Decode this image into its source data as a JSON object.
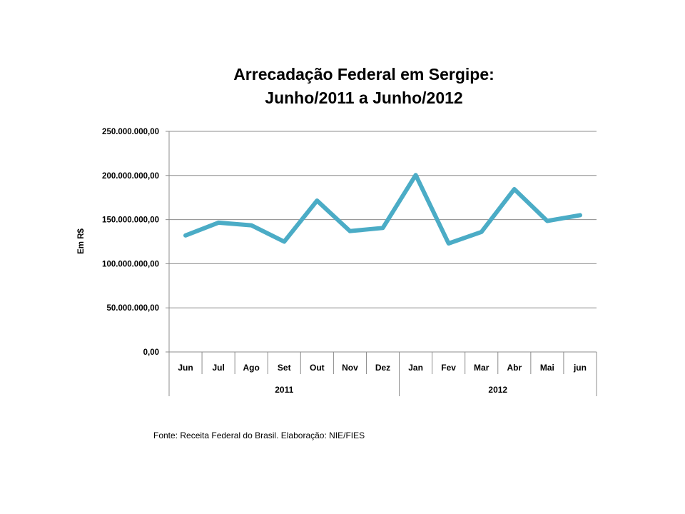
{
  "chart_data": {
    "type": "line",
    "title": "Arrecadação Federal em Sergipe:",
    "subtitle": "Junho/2011 a Junho/2012",
    "ylabel": "Em R$",
    "xlabel": "",
    "ylim": [
      0,
      250000000
    ],
    "yticks": [
      0,
      50000000,
      100000000,
      150000000,
      200000000,
      250000000
    ],
    "ytick_labels": [
      "0,00",
      "50.000.000,00",
      "100.000.000,00",
      "150.000.000,00",
      "200.000.000,00",
      "250.000.000,00"
    ],
    "categories": [
      "Jun",
      "Jul",
      "Ago",
      "Set",
      "Out",
      "Nov",
      "Dez",
      "Jan",
      "Fev",
      "Mar",
      "Abr",
      "Mai",
      "jun"
    ],
    "groups": [
      {
        "label": "2011",
        "count": 7
      },
      {
        "label": "2012",
        "count": 6
      }
    ],
    "series": [
      {
        "values": [
          132000000,
          146500000,
          143500000,
          125000000,
          171500000,
          137000000,
          140500000,
          200500000,
          123000000,
          136000000,
          184500000,
          148500000,
          155000000
        ]
      }
    ],
    "line_color": "#4BACC6",
    "grid": true
  },
  "source": "Fonte: Receita Federal do Brasil. Elaboração: NIE/FIES"
}
